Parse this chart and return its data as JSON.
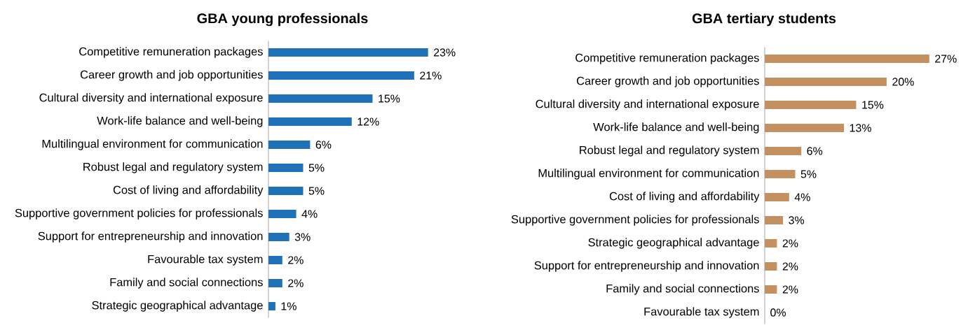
{
  "chart_data": [
    {
      "type": "bar",
      "orientation": "horizontal",
      "title": "GBA young professionals",
      "categories": [
        "Competitive remuneration packages",
        "Career growth and job opportunities",
        "Cultural diversity and international exposure",
        "Work-life balance and well-being",
        "Multilingual environment for communication",
        "Robust legal and regulatory system",
        "Cost of living and affordability",
        "Supportive government policies for professionals",
        "Support for entrepreneurship and innovation",
        "Favourable tax system",
        "Family and social connections",
        "Strategic geographical advantage"
      ],
      "values": [
        23,
        21,
        15,
        12,
        6,
        5,
        5,
        4,
        3,
        2,
        2,
        1
      ],
      "value_labels": [
        "23%",
        "21%",
        "15%",
        "12%",
        "6%",
        "5%",
        "5%",
        "4%",
        "3%",
        "2%",
        "2%",
        "1%"
      ],
      "color": "#1f72b8"
    },
    {
      "type": "bar",
      "orientation": "horizontal",
      "title": "GBA tertiary students",
      "categories": [
        "Competitive remuneration packages",
        "Career growth and job opportunities",
        "Cultural diversity and international exposure",
        "Work-life balance and well-being",
        "Robust legal and regulatory system",
        "Multilingual environment for communication",
        "Cost of living and affordability",
        "Supportive government policies for professionals",
        "Strategic geographical advantage",
        "Support for entrepreneurship and innovation",
        "Family and social connections",
        "Favourable tax system"
      ],
      "values": [
        27,
        20,
        15,
        13,
        6,
        5,
        4,
        3,
        2,
        2,
        2,
        0
      ],
      "value_labels": [
        "27%",
        "20%",
        "15%",
        "13%",
        "6%",
        "5%",
        "4%",
        "3%",
        "2%",
        "2%",
        "2%",
        "0%"
      ],
      "color": "#c49060"
    }
  ]
}
